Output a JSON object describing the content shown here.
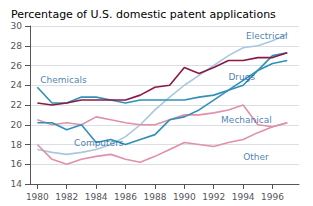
{
  "chart_data": {
    "type": "line",
    "title": "Percentage of U.S. domestic patent applications",
    "x": [
      1980,
      1981,
      1982,
      1983,
      1984,
      1985,
      1986,
      1987,
      1988,
      1989,
      1990,
      1991,
      1992,
      1993,
      1994,
      1995,
      1996,
      1997
    ],
    "series": [
      {
        "name": "Electrical",
        "color": "#a8c8e0",
        "values": [
          17.5,
          17.2,
          17.0,
          17.2,
          17.5,
          18.0,
          18.8,
          20.0,
          21.5,
          22.8,
          24.0,
          25.0,
          26.0,
          27.0,
          27.8,
          28.0,
          28.5,
          29.2
        ]
      },
      {
        "name": "Chemicals",
        "color": "#3090b8",
        "values": [
          23.8,
          22.2,
          22.2,
          22.8,
          22.8,
          22.5,
          22.2,
          22.5,
          22.5,
          22.5,
          22.5,
          22.8,
          23.0,
          23.5,
          24.0,
          25.5,
          27.0,
          27.3
        ]
      },
      {
        "name": "Drugs",
        "color": "#8b1845",
        "values": [
          22.2,
          22.0,
          22.2,
          22.5,
          22.5,
          22.5,
          22.5,
          23.0,
          23.8,
          24.0,
          25.8,
          25.2,
          25.8,
          26.5,
          26.5,
          26.8,
          26.8,
          27.3
        ]
      },
      {
        "name": "Mechanical",
        "color": "#e090a8",
        "values": [
          20.5,
          20.0,
          20.2,
          20.0,
          20.8,
          20.5,
          20.2,
          20.0,
          20.0,
          20.5,
          21.0,
          21.0,
          21.2,
          21.5,
          22.0,
          20.0,
          19.8,
          20.2
        ]
      },
      {
        "name": "Computers",
        "color": "#3090b8",
        "values": [
          20.2,
          20.2,
          19.5,
          20.0,
          18.2,
          18.5,
          18.0,
          18.5,
          19.0,
          20.5,
          20.8,
          21.5,
          22.5,
          23.5,
          24.5,
          25.5,
          26.2,
          26.5
        ]
      },
      {
        "name": "Other",
        "color": "#e090a8",
        "values": [
          18.0,
          16.5,
          16.0,
          16.5,
          16.8,
          17.0,
          16.5,
          16.2,
          16.8,
          17.5,
          18.2,
          18.0,
          17.8,
          18.2,
          18.5,
          19.2,
          19.8,
          20.2
        ]
      }
    ],
    "annotations": [
      {
        "text": "Electrical",
        "x": 1994.2,
        "y": 29.0
      },
      {
        "text": "Chemicals",
        "x": 1980.2,
        "y": 24.5
      },
      {
        "text": "Drugs",
        "x": 1993.0,
        "y": 24.8
      },
      {
        "text": "Mechanical",
        "x": 1992.5,
        "y": 20.5
      },
      {
        "text": "Computers",
        "x": 1982.5,
        "y": 18.2
      },
      {
        "text": "Other",
        "x": 1994.0,
        "y": 16.7
      }
    ],
    "xlim": [
      1979.5,
      1997.8
    ],
    "xticks": [
      1980,
      1982,
      1984,
      1986,
      1988,
      1990,
      1992,
      1994,
      1996
    ],
    "ylim": [
      14,
      30
    ],
    "yticks": [
      14,
      16,
      18,
      20,
      22,
      24,
      26,
      28,
      30
    ],
    "grid": true
  }
}
